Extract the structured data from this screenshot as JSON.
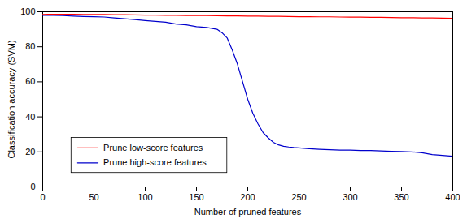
{
  "chart_data": {
    "type": "line",
    "title": "",
    "xlabel": "Number of pruned features",
    "ylabel": "Classification accuracy (SVM)",
    "xlim": [
      0,
      400
    ],
    "ylim": [
      0,
      100
    ],
    "xticks": [
      0,
      50,
      100,
      150,
      200,
      250,
      300,
      350,
      400
    ],
    "yticks": [
      0,
      20,
      40,
      60,
      80,
      100
    ],
    "grid": false,
    "legend": "lower left",
    "series": [
      {
        "name": "Prune low-score features",
        "color": "#ff0000",
        "x": [
          0,
          5,
          10,
          20,
          30,
          40,
          50,
          60,
          70,
          80,
          90,
          100,
          110,
          120,
          130,
          140,
          150,
          160,
          170,
          180,
          190,
          200,
          210,
          220,
          230,
          240,
          250,
          260,
          270,
          280,
          290,
          300,
          310,
          320,
          330,
          340,
          350,
          360,
          370,
          380,
          390,
          400
        ],
        "values": [
          98.5,
          98.6,
          98.6,
          98.6,
          98.6,
          98.5,
          98.5,
          98.4,
          98.3,
          98.3,
          98.2,
          98.1,
          98.1,
          98.0,
          98.0,
          97.9,
          97.8,
          97.8,
          97.7,
          97.6,
          97.6,
          97.5,
          97.5,
          97.4,
          97.4,
          97.3,
          97.2,
          97.2,
          97.1,
          97.1,
          97.0,
          96.9,
          96.9,
          96.8,
          96.8,
          96.7,
          96.6,
          96.6,
          96.5,
          96.5,
          96.4,
          96.3
        ]
      },
      {
        "name": "Prune high-score features",
        "color": "#0000cc",
        "x": [
          0,
          5,
          10,
          20,
          30,
          40,
          50,
          60,
          70,
          80,
          90,
          100,
          110,
          120,
          130,
          140,
          150,
          160,
          170,
          175,
          180,
          185,
          190,
          195,
          200,
          205,
          210,
          215,
          220,
          225,
          230,
          235,
          240,
          245,
          250,
          260,
          270,
          280,
          290,
          300,
          310,
          320,
          330,
          340,
          350,
          360,
          370,
          380,
          390,
          400
        ],
        "values": [
          98.0,
          98.0,
          98.0,
          97.8,
          97.5,
          97.3,
          97.2,
          97.0,
          96.5,
          96.0,
          95.5,
          95.0,
          94.5,
          94.0,
          93.0,
          92.5,
          91.5,
          91.0,
          90.0,
          88.0,
          85.0,
          78.0,
          70.0,
          60.0,
          50.0,
          42.0,
          36.0,
          31.0,
          28.0,
          25.5,
          24.0,
          23.2,
          22.8,
          22.5,
          22.3,
          21.8,
          21.5,
          21.2,
          21.0,
          21.0,
          20.8,
          20.8,
          20.5,
          20.3,
          20.2,
          20.0,
          19.5,
          18.5,
          18.0,
          17.5
        ]
      }
    ]
  }
}
